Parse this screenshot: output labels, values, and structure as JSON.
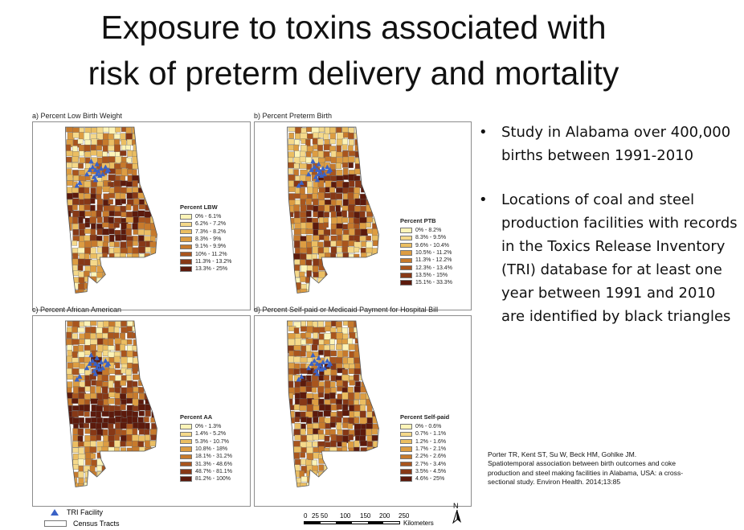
{
  "slide": {
    "title_line1": "Exposure to toxins associated with",
    "title_line2": "risk of preterm delivery and mortality",
    "bullets": [
      "Study in Alabama over 400,000 births between 1991-2010",
      "Locations of coal and steel production facilities with records in the Toxics Release Inventory (TRI) database for at least one year between 1991 and 2010 are identified by black triangles"
    ],
    "citation": "Porter TR, Kent ST, Su W, Beck HM, Gohlke JM. Spatiotemporal association between birth outcomes and coke production and steel making facilities in Alabama, USA: a cross-sectional study. Environ Health. 2014;13:85"
  },
  "maps": [
    {
      "label": "a) Percent Low Birth Weight",
      "legend_title": "Percent LBW",
      "classes": [
        "0% - 6.1%",
        "6.2% - 7.2%",
        "7.3% - 8.2%",
        "8.3% - 9%",
        "9.1% - 9.9%",
        "10% - 11.2%",
        "11.3% - 13.2%",
        "13.3% - 25%"
      ]
    },
    {
      "label": "b) Percent Preterm Birth",
      "legend_title": "Percent PTB",
      "classes": [
        "0% - 8.2%",
        "8.3% - 9.5%",
        "9.6% - 10.4%",
        "10.5% - 11.2%",
        "11.3% - 12.2%",
        "12.3% - 13.4%",
        "13.5% - 15%",
        "15.1% - 33.3%"
      ]
    },
    {
      "label": "c) Percent African American",
      "legend_title": "Percent AA",
      "classes": [
        "0% - 1.3%",
        "1.4% - 5.2%",
        "5.3% - 10.7%",
        "10.8% - 18%",
        "18.1% - 31.2%",
        "31.3% - 48.6%",
        "48.7% - 81.1%",
        "81.2% - 100%"
      ]
    },
    {
      "label": "d) Percent Self-paid or Medicaid Payment for Hospital Bill",
      "legend_title": "Percent Self-paid",
      "classes": [
        "0% - 0.6%",
        "0.7% - 1.1%",
        "1.2% - 1.6%",
        "1.7% - 2.1%",
        "2.2% - 2.6%",
        "2.7% - 3.4%",
        "3.5% - 4.5%",
        "4.6% - 25%"
      ]
    }
  ],
  "palette": [
    "#fdf4b8",
    "#f5d98a",
    "#ebbe62",
    "#dd9d42",
    "#c77a2c",
    "#a9551d",
    "#873816",
    "#5c1a0c"
  ],
  "tri_color": "#3a62c6",
  "map_legend": {
    "tri_label": "TRI Facility",
    "tracts_label": "Census Tracts"
  },
  "scale_bar": {
    "ticks": [
      "0",
      "25",
      "50",
      "100",
      "150",
      "200",
      "250"
    ],
    "unit": "Kilometers",
    "north": "N"
  }
}
